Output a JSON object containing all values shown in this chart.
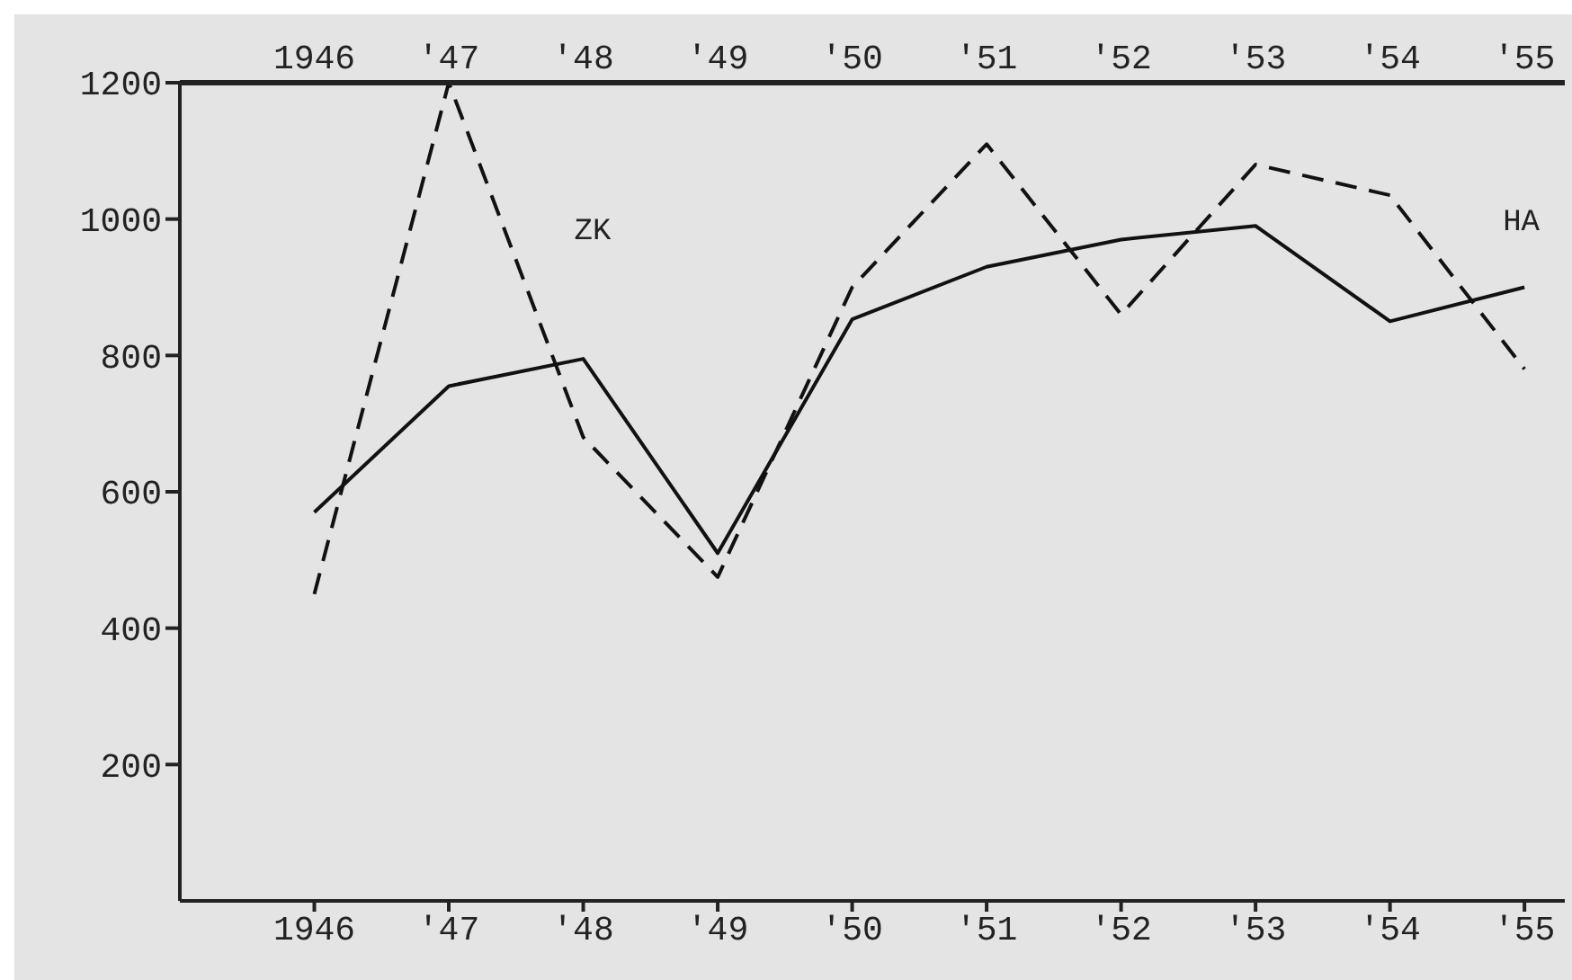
{
  "chart_data": {
    "type": "line",
    "categories": [
      "1946",
      "'47",
      "'48",
      "'49",
      "'50",
      "'51",
      "'52",
      "'53",
      "'54",
      "'55"
    ],
    "series": [
      {
        "name": "ZK",
        "color": "#111111",
        "line_style": "dashed",
        "values": [
          450,
          1200,
          680,
          475,
          900,
          1110,
          860,
          1080,
          1035,
          780
        ]
      },
      {
        "name": "HA",
        "color": "#111111",
        "line_style": "solid",
        "values": [
          570,
          755,
          795,
          510,
          853,
          930,
          970,
          990,
          850,
          900
        ]
      }
    ],
    "ylim": [
      0,
      1200
    ],
    "yticks": [
      200,
      400,
      600,
      800,
      1000,
      1200
    ],
    "marker": "none"
  }
}
